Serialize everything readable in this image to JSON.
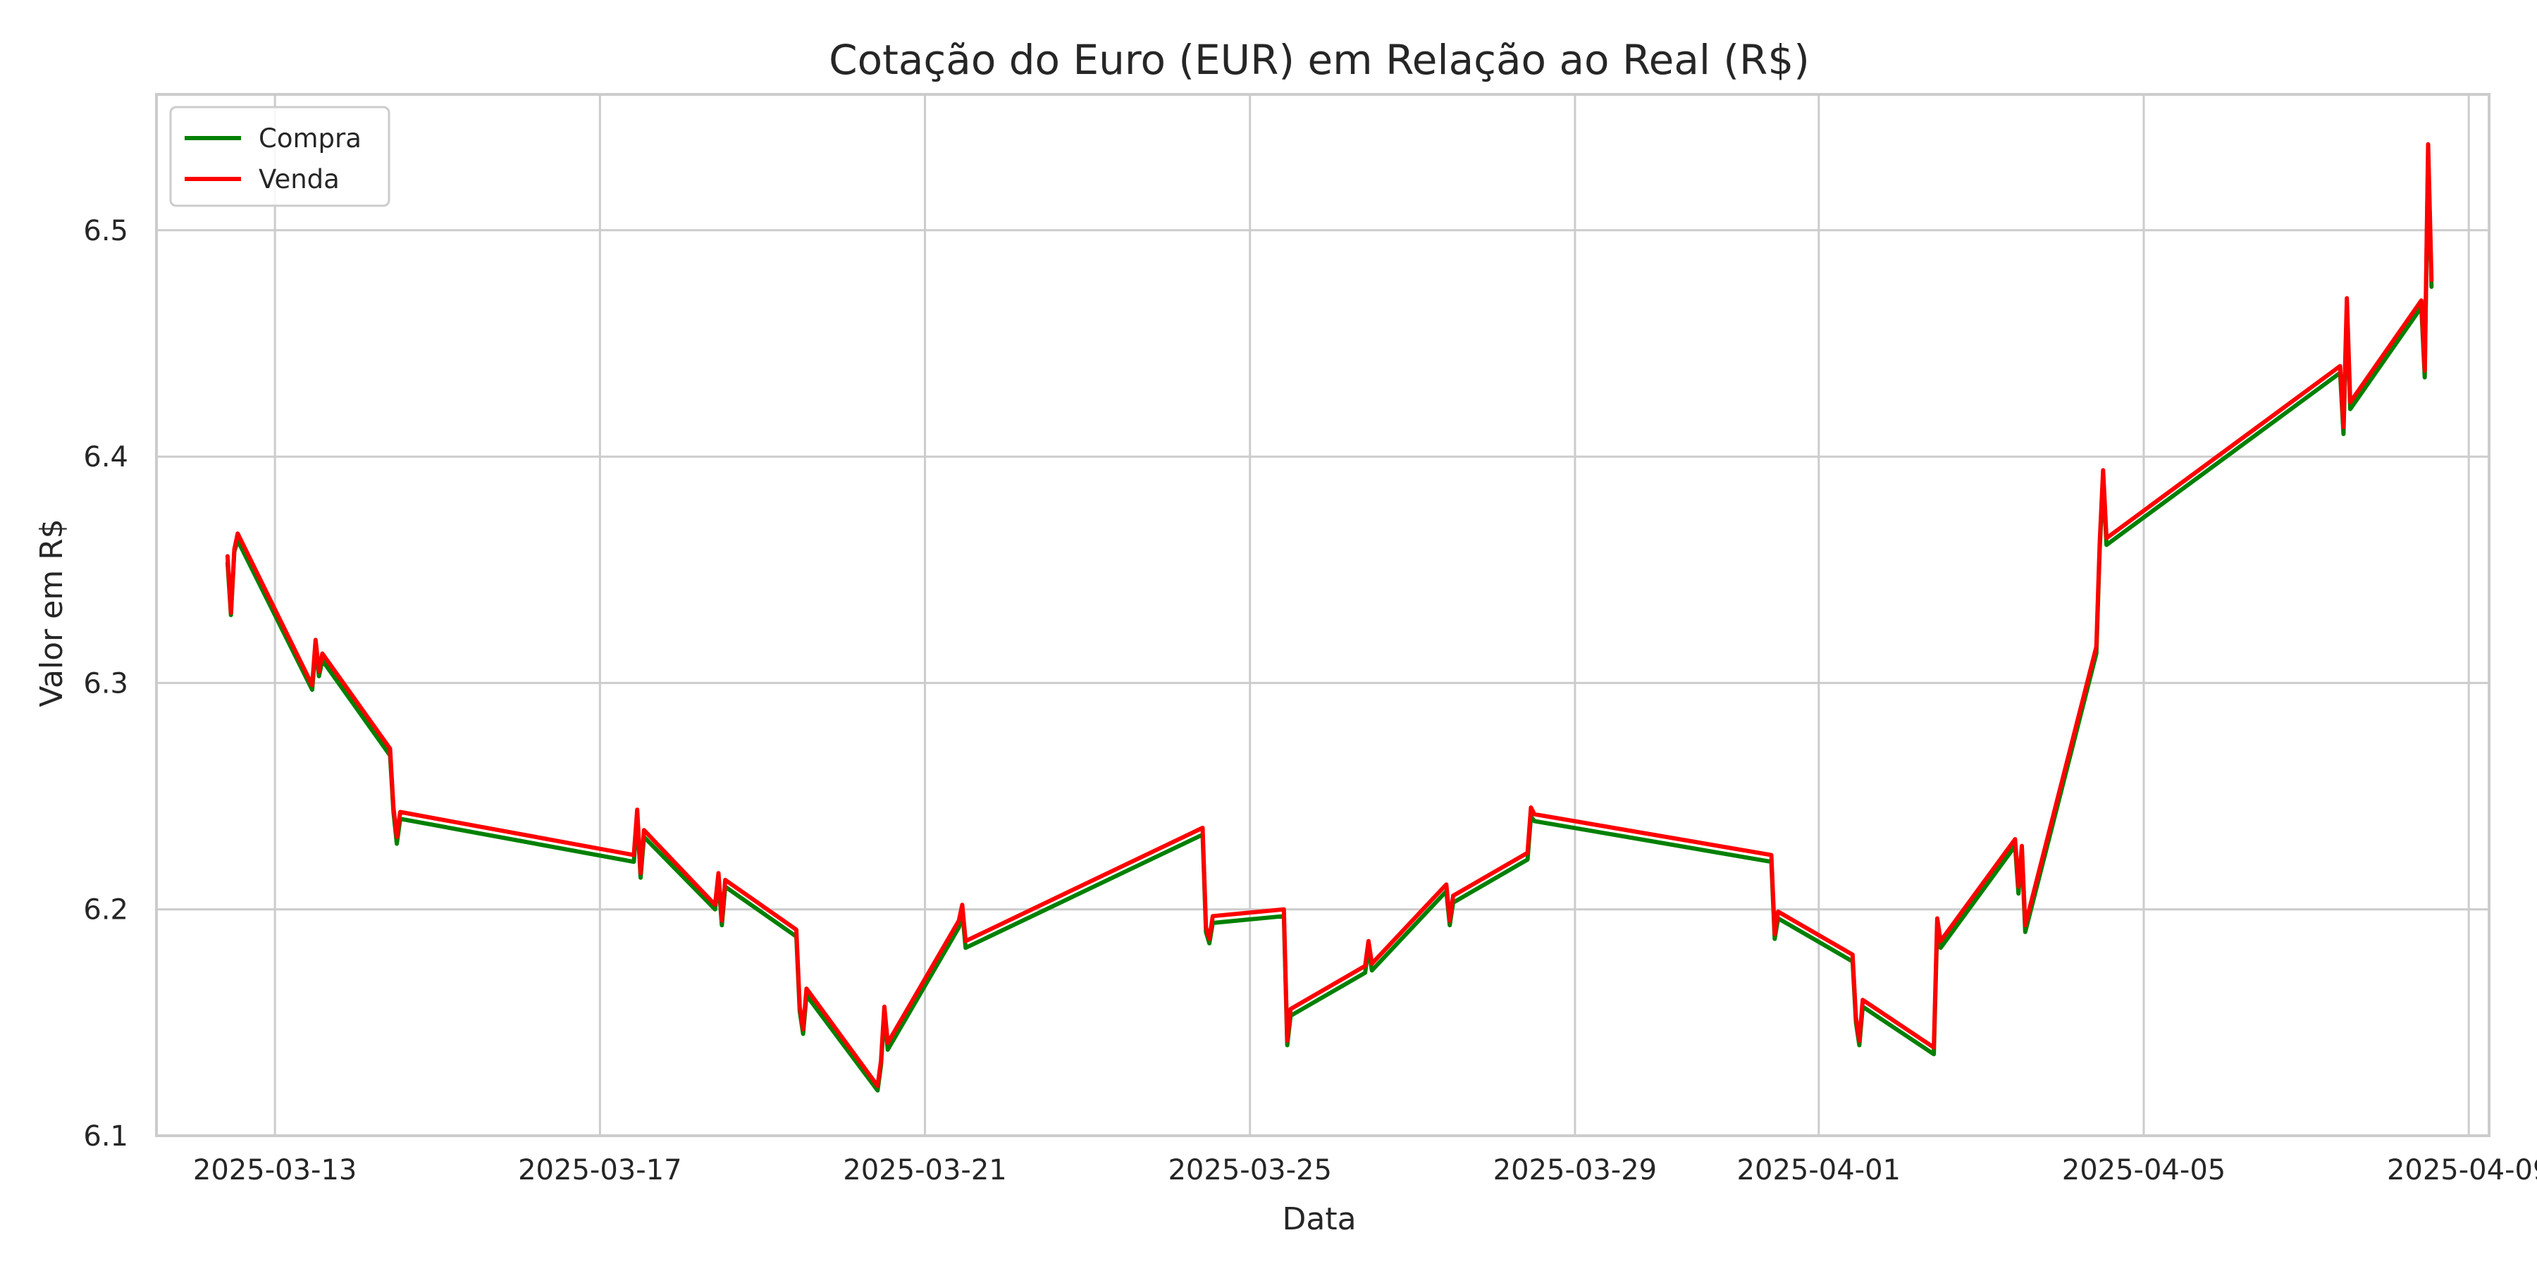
{
  "chart_data": {
    "type": "line",
    "title": "Cotação do Euro (EUR) em Relação ao Real (R$)",
    "xlabel": "Data",
    "ylabel": "Valor em R$",
    "xlim": [
      "2025-03-11T13:00",
      "2025-04-09T06:00"
    ],
    "ylim": [
      6.1,
      6.56
    ],
    "x_ticks": [
      "2025-03-13",
      "2025-03-17",
      "2025-03-21",
      "2025-03-25",
      "2025-03-29",
      "2025-04-01",
      "2025-04-05",
      "2025-04-09"
    ],
    "y_ticks": [
      6.1,
      6.2,
      6.3,
      6.4,
      6.5
    ],
    "y_tick_labels": [
      "6.1",
      "6.2",
      "6.3",
      "6.4",
      "6.5"
    ],
    "grid": true,
    "legend_position": "top-left",
    "series": [
      {
        "name": "Compra",
        "color": "#008000",
        "points": [
          [
            "2025-03-12T10:00",
            6.353
          ],
          [
            "2025-03-12T11:00",
            6.33
          ],
          [
            "2025-03-12T12:00",
            6.358
          ],
          [
            "2025-03-12T13:00",
            6.363
          ],
          [
            "2025-03-13T11:00",
            6.297
          ],
          [
            "2025-03-13T12:00",
            6.316
          ],
          [
            "2025-03-13T13:00",
            6.303
          ],
          [
            "2025-03-13T14:00",
            6.31
          ],
          [
            "2025-03-14T10:00",
            6.268
          ],
          [
            "2025-03-14T11:00",
            6.243
          ],
          [
            "2025-03-14T12:00",
            6.229
          ],
          [
            "2025-03-14T13:00",
            6.24
          ],
          [
            "2025-03-17T10:00",
            6.221
          ],
          [
            "2025-03-17T11:00",
            6.241
          ],
          [
            "2025-03-17T12:00",
            6.214
          ],
          [
            "2025-03-17T13:00",
            6.232
          ],
          [
            "2025-03-18T10:00",
            6.2
          ],
          [
            "2025-03-18T11:00",
            6.213
          ],
          [
            "2025-03-18T12:00",
            6.193
          ],
          [
            "2025-03-18T13:00",
            6.21
          ],
          [
            "2025-03-19T10:00",
            6.188
          ],
          [
            "2025-03-19T11:00",
            6.155
          ],
          [
            "2025-03-19T12:00",
            6.145
          ],
          [
            "2025-03-19T13:00",
            6.162
          ],
          [
            "2025-03-20T10:00",
            6.12
          ],
          [
            "2025-03-20T11:00",
            6.131
          ],
          [
            "2025-03-20T12:00",
            6.154
          ],
          [
            "2025-03-20T13:00",
            6.138
          ],
          [
            "2025-03-21T10:00",
            6.192
          ],
          [
            "2025-03-21T11:00",
            6.199
          ],
          [
            "2025-03-21T12:00",
            6.183
          ],
          [
            "2025-03-24T10:00",
            6.233
          ],
          [
            "2025-03-24T11:00",
            6.19
          ],
          [
            "2025-03-24T12:00",
            6.185
          ],
          [
            "2025-03-24T13:00",
            6.194
          ],
          [
            "2025-03-25T10:00",
            6.197
          ],
          [
            "2025-03-25T11:00",
            6.14
          ],
          [
            "2025-03-25T12:00",
            6.153
          ],
          [
            "2025-03-26T10:00",
            6.172
          ],
          [
            "2025-03-26T11:00",
            6.183
          ],
          [
            "2025-03-26T12:00",
            6.173
          ],
          [
            "2025-03-27T10:00",
            6.208
          ],
          [
            "2025-03-27T11:00",
            6.193
          ],
          [
            "2025-03-27T12:00",
            6.203
          ],
          [
            "2025-03-28T10:00",
            6.222
          ],
          [
            "2025-03-28T11:00",
            6.241
          ],
          [
            "2025-03-28T12:00",
            6.239
          ],
          [
            "2025-03-31T10:00",
            6.221
          ],
          [
            "2025-03-31T11:00",
            6.187
          ],
          [
            "2025-03-31T12:00",
            6.196
          ],
          [
            "2025-04-01T10:00",
            6.177
          ],
          [
            "2025-04-01T11:00",
            6.15
          ],
          [
            "2025-04-01T12:00",
            6.14
          ],
          [
            "2025-04-01T13:00",
            6.157
          ],
          [
            "2025-04-02T10:00",
            6.136
          ],
          [
            "2025-04-02T11:00",
            6.193
          ],
          [
            "2025-04-02T12:00",
            6.183
          ],
          [
            "2025-04-03T10:00",
            6.228
          ],
          [
            "2025-04-03T11:00",
            6.207
          ],
          [
            "2025-04-03T12:00",
            6.225
          ],
          [
            "2025-04-03T13:00",
            6.19
          ],
          [
            "2025-04-04T10:00",
            6.313
          ],
          [
            "2025-04-04T11:00",
            6.359
          ],
          [
            "2025-04-04T12:00",
            6.39
          ],
          [
            "2025-04-04T13:00",
            6.361
          ],
          [
            "2025-04-07T10:00",
            6.437
          ],
          [
            "2025-04-07T11:00",
            6.41
          ],
          [
            "2025-04-07T12:00",
            6.466
          ],
          [
            "2025-04-07T13:00",
            6.421
          ],
          [
            "2025-04-08T10:00",
            6.466
          ],
          [
            "2025-04-08T11:00",
            6.435
          ],
          [
            "2025-04-08T12:00",
            6.534
          ],
          [
            "2025-04-08T13:00",
            6.475
          ]
        ]
      },
      {
        "name": "Venda",
        "color": "#ff0000",
        "points": [
          [
            "2025-03-12T10:00",
            6.356
          ],
          [
            "2025-03-12T11:00",
            6.331
          ],
          [
            "2025-03-12T12:00",
            6.359
          ],
          [
            "2025-03-12T13:00",
            6.366
          ],
          [
            "2025-03-13T11:00",
            6.299
          ],
          [
            "2025-03-13T12:00",
            6.319
          ],
          [
            "2025-03-13T13:00",
            6.305
          ],
          [
            "2025-03-13T14:00",
            6.313
          ],
          [
            "2025-03-14T10:00",
            6.271
          ],
          [
            "2025-03-14T11:00",
            6.245
          ],
          [
            "2025-03-14T12:00",
            6.232
          ],
          [
            "2025-03-14T13:00",
            6.243
          ],
          [
            "2025-03-17T10:00",
            6.224
          ],
          [
            "2025-03-17T11:00",
            6.244
          ],
          [
            "2025-03-17T12:00",
            6.216
          ],
          [
            "2025-03-17T13:00",
            6.235
          ],
          [
            "2025-03-18T10:00",
            6.202
          ],
          [
            "2025-03-18T11:00",
            6.216
          ],
          [
            "2025-03-18T12:00",
            6.195
          ],
          [
            "2025-03-18T13:00",
            6.213
          ],
          [
            "2025-03-19T10:00",
            6.191
          ],
          [
            "2025-03-19T11:00",
            6.157
          ],
          [
            "2025-03-19T12:00",
            6.147
          ],
          [
            "2025-03-19T13:00",
            6.165
          ],
          [
            "2025-03-20T10:00",
            6.122
          ],
          [
            "2025-03-20T11:00",
            6.133
          ],
          [
            "2025-03-20T12:00",
            6.157
          ],
          [
            "2025-03-20T13:00",
            6.141
          ],
          [
            "2025-03-21T10:00",
            6.195
          ],
          [
            "2025-03-21T11:00",
            6.202
          ],
          [
            "2025-03-21T12:00",
            6.186
          ],
          [
            "2025-03-24T10:00",
            6.236
          ],
          [
            "2025-03-24T11:00",
            6.192
          ],
          [
            "2025-03-24T12:00",
            6.187
          ],
          [
            "2025-03-24T13:00",
            6.197
          ],
          [
            "2025-03-25T10:00",
            6.2
          ],
          [
            "2025-03-25T11:00",
            6.142
          ],
          [
            "2025-03-25T12:00",
            6.156
          ],
          [
            "2025-03-26T10:00",
            6.175
          ],
          [
            "2025-03-26T11:00",
            6.186
          ],
          [
            "2025-03-26T12:00",
            6.176
          ],
          [
            "2025-03-27T10:00",
            6.211
          ],
          [
            "2025-03-27T11:00",
            6.195
          ],
          [
            "2025-03-27T12:00",
            6.206
          ],
          [
            "2025-03-28T10:00",
            6.225
          ],
          [
            "2025-03-28T11:00",
            6.245
          ],
          [
            "2025-03-28T12:00",
            6.242
          ],
          [
            "2025-03-31T10:00",
            6.224
          ],
          [
            "2025-03-31T11:00",
            6.189
          ],
          [
            "2025-03-31T12:00",
            6.199
          ],
          [
            "2025-04-01T10:00",
            6.18
          ],
          [
            "2025-04-01T11:00",
            6.152
          ],
          [
            "2025-04-01T12:00",
            6.142
          ],
          [
            "2025-04-01T13:00",
            6.16
          ],
          [
            "2025-04-02T10:00",
            6.139
          ],
          [
            "2025-04-02T11:00",
            6.196
          ],
          [
            "2025-04-02T12:00",
            6.186
          ],
          [
            "2025-04-03T10:00",
            6.231
          ],
          [
            "2025-04-03T11:00",
            6.21
          ],
          [
            "2025-04-03T12:00",
            6.228
          ],
          [
            "2025-04-03T13:00",
            6.193
          ],
          [
            "2025-04-04T10:00",
            6.316
          ],
          [
            "2025-04-04T11:00",
            6.362
          ],
          [
            "2025-04-04T12:00",
            6.394
          ],
          [
            "2025-04-04T13:00",
            6.364
          ],
          [
            "2025-04-07T10:00",
            6.44
          ],
          [
            "2025-04-07T11:00",
            6.413
          ],
          [
            "2025-04-07T12:00",
            6.47
          ],
          [
            "2025-04-07T13:00",
            6.424
          ],
          [
            "2025-04-08T10:00",
            6.469
          ],
          [
            "2025-04-08T11:00",
            6.438
          ],
          [
            "2025-04-08T12:00",
            6.538
          ],
          [
            "2025-04-08T13:00",
            6.478
          ]
        ]
      }
    ]
  }
}
